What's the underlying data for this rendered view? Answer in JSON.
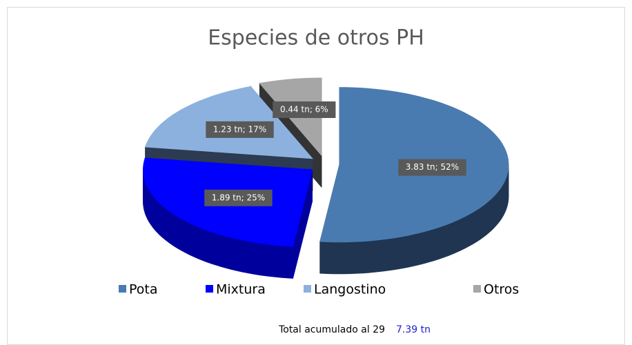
{
  "chart_data": {
    "type": "pie3d",
    "title": "Especies de otros PH",
    "categories": [
      "Pota",
      "Mixtura",
      "Langostino",
      "Otros"
    ],
    "values": [
      3.83,
      1.89,
      1.23,
      0.44
    ],
    "value_labels": [
      "3.83 tn; 52%",
      "1.89 tn; 25%",
      "1.23 tn; 17%",
      "0.44 tn; 6%"
    ],
    "colors": [
      "#4a7bb0",
      "#0000ff",
      "#8db1de",
      "#a6a6a6"
    ],
    "side_colors": [
      "#1f3552",
      "#00009c",
      "#2c3b52",
      "#333333"
    ],
    "legend": "bottom",
    "annotations": {
      "total_text": "Total acumulado al 29",
      "total_value": "7.39 tn"
    }
  }
}
